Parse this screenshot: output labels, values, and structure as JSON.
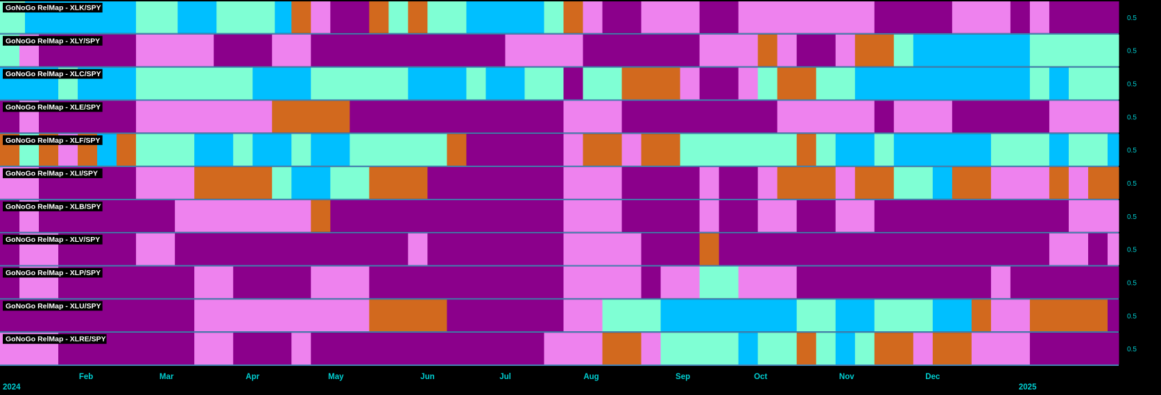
{
  "colors": {
    "strong_go": "#00BFFF",
    "go": "#7FFFD4",
    "nogo": "#EE82EE",
    "strong_nogo": "#8B008B",
    "nogo_neutral": "#D2691E",
    "separator": "#4682B4",
    "axis_text": "#00CED1"
  },
  "chart_data": {
    "type": "heatmap",
    "time_range": [
      "2024-01-01",
      "2025-02-07"
    ],
    "x_ticks": [
      {
        "date": "2024-01-02",
        "label": "2024",
        "row": 2
      },
      {
        "date": "2024-02-01",
        "label": "Feb",
        "row": 1
      },
      {
        "date": "2024-03-01",
        "label": "Mar",
        "row": 1
      },
      {
        "date": "2024-04-01",
        "label": "Apr",
        "row": 1
      },
      {
        "date": "2024-05-01",
        "label": "May",
        "row": 1
      },
      {
        "date": "2024-06-03",
        "label": "Jun",
        "row": 1
      },
      {
        "date": "2024-07-01",
        "label": "Jul",
        "row": 1
      },
      {
        "date": "2024-08-01",
        "label": "Aug",
        "row": 1
      },
      {
        "date": "2024-09-03",
        "label": "Sep",
        "row": 1
      },
      {
        "date": "2024-10-01",
        "label": "Oct",
        "row": 1
      },
      {
        "date": "2024-11-01",
        "label": "Nov",
        "row": 1
      },
      {
        "date": "2024-12-02",
        "label": "Dec",
        "row": 1
      },
      {
        "date": "2025-01-02",
        "label": "2025",
        "row": 2
      }
    ],
    "y_tick_label": "0.5",
    "categories": [
      "strong_go",
      "go",
      "nogo",
      "strong_nogo",
      "nogo_neutral"
    ],
    "series": [
      {
        "name": "GoNoGo RelMap - XLK/SPY",
        "segments": [
          [
            "2024-01-01",
            "go"
          ],
          [
            "2024-01-10",
            "strong_go"
          ],
          [
            "2024-02-19",
            "go"
          ],
          [
            "2024-03-05",
            "strong_go"
          ],
          [
            "2024-03-19",
            "go"
          ],
          [
            "2024-04-09",
            "strong_go"
          ],
          [
            "2024-04-15",
            "nogo_neutral"
          ],
          [
            "2024-04-22",
            "nogo"
          ],
          [
            "2024-04-29",
            "strong_nogo"
          ],
          [
            "2024-05-13",
            "nogo_neutral"
          ],
          [
            "2024-05-20",
            "go"
          ],
          [
            "2024-05-27",
            "nogo_neutral"
          ],
          [
            "2024-06-03",
            "go"
          ],
          [
            "2024-06-17",
            "strong_go"
          ],
          [
            "2024-07-15",
            "go"
          ],
          [
            "2024-07-22",
            "nogo_neutral"
          ],
          [
            "2024-07-29",
            "nogo"
          ],
          [
            "2024-08-05",
            "strong_nogo"
          ],
          [
            "2024-08-19",
            "nogo"
          ],
          [
            "2024-09-09",
            "strong_nogo"
          ],
          [
            "2024-09-23",
            "nogo"
          ],
          [
            "2024-11-11",
            "strong_nogo"
          ],
          [
            "2024-12-09",
            "nogo"
          ],
          [
            "2024-12-30",
            "strong_nogo"
          ],
          [
            "2025-01-06",
            "nogo"
          ],
          [
            "2025-01-13",
            "strong_nogo"
          ]
        ]
      },
      {
        "name": "GoNoGo RelMap - XLY/SPY",
        "segments": [
          [
            "2024-01-01",
            "go"
          ],
          [
            "2024-01-08",
            "nogo"
          ],
          [
            "2024-01-15",
            "strong_nogo"
          ],
          [
            "2024-02-19",
            "nogo"
          ],
          [
            "2024-03-18",
            "strong_nogo"
          ],
          [
            "2024-04-08",
            "nogo"
          ],
          [
            "2024-04-22",
            "strong_nogo"
          ],
          [
            "2024-07-01",
            "nogo"
          ],
          [
            "2024-07-29",
            "strong_nogo"
          ],
          [
            "2024-09-09",
            "nogo"
          ],
          [
            "2024-09-30",
            "nogo_neutral"
          ],
          [
            "2024-10-07",
            "nogo"
          ],
          [
            "2024-10-14",
            "strong_nogo"
          ],
          [
            "2024-10-28",
            "nogo"
          ],
          [
            "2024-11-04",
            "nogo_neutral"
          ],
          [
            "2024-11-18",
            "go"
          ],
          [
            "2024-11-25",
            "strong_go"
          ],
          [
            "2025-01-06",
            "go"
          ]
        ]
      },
      {
        "name": "GoNoGo RelMap - XLC/SPY",
        "segments": [
          [
            "2024-01-01",
            "strong_go"
          ],
          [
            "2024-01-22",
            "go"
          ],
          [
            "2024-01-29",
            "strong_go"
          ],
          [
            "2024-02-19",
            "go"
          ],
          [
            "2024-04-01",
            "strong_go"
          ],
          [
            "2024-04-22",
            "go"
          ],
          [
            "2024-05-27",
            "strong_go"
          ],
          [
            "2024-06-17",
            "go"
          ],
          [
            "2024-06-24",
            "strong_go"
          ],
          [
            "2024-07-08",
            "go"
          ],
          [
            "2024-07-22",
            "strong_nogo"
          ],
          [
            "2024-07-29",
            "go"
          ],
          [
            "2024-08-12",
            "nogo_neutral"
          ],
          [
            "2024-09-02",
            "nogo"
          ],
          [
            "2024-09-09",
            "strong_nogo"
          ],
          [
            "2024-09-23",
            "nogo"
          ],
          [
            "2024-09-30",
            "go"
          ],
          [
            "2024-10-07",
            "nogo_neutral"
          ],
          [
            "2024-10-21",
            "go"
          ],
          [
            "2024-11-04",
            "strong_go"
          ],
          [
            "2025-01-06",
            "go"
          ],
          [
            "2025-01-13",
            "strong_go"
          ],
          [
            "2025-01-20",
            "go"
          ]
        ]
      },
      {
        "name": "GoNoGo RelMap - XLE/SPY",
        "segments": [
          [
            "2024-01-01",
            "strong_nogo"
          ],
          [
            "2024-01-08",
            "nogo"
          ],
          [
            "2024-01-15",
            "strong_nogo"
          ],
          [
            "2024-02-19",
            "nogo"
          ],
          [
            "2024-04-08",
            "nogo_neutral"
          ],
          [
            "2024-05-06",
            "strong_nogo"
          ],
          [
            "2024-07-22",
            "nogo"
          ],
          [
            "2024-08-12",
            "strong_nogo"
          ],
          [
            "2024-10-07",
            "nogo"
          ],
          [
            "2024-11-11",
            "strong_nogo"
          ],
          [
            "2024-11-18",
            "nogo"
          ],
          [
            "2024-12-09",
            "strong_nogo"
          ],
          [
            "2025-01-13",
            "nogo"
          ]
        ]
      },
      {
        "name": "GoNoGo RelMap - XLF/SPY",
        "segments": [
          [
            "2024-01-01",
            "nogo_neutral"
          ],
          [
            "2024-01-08",
            "go"
          ],
          [
            "2024-01-15",
            "nogo_neutral"
          ],
          [
            "2024-01-22",
            "nogo"
          ],
          [
            "2024-01-29",
            "nogo_neutral"
          ],
          [
            "2024-02-05",
            "strong_go"
          ],
          [
            "2024-02-12",
            "nogo_neutral"
          ],
          [
            "2024-02-19",
            "go"
          ],
          [
            "2024-03-11",
            "strong_go"
          ],
          [
            "2024-03-25",
            "go"
          ],
          [
            "2024-04-01",
            "strong_go"
          ],
          [
            "2024-04-15",
            "go"
          ],
          [
            "2024-04-22",
            "strong_go"
          ],
          [
            "2024-05-06",
            "go"
          ],
          [
            "2024-06-10",
            "nogo_neutral"
          ],
          [
            "2024-06-17",
            "strong_nogo"
          ],
          [
            "2024-07-22",
            "nogo"
          ],
          [
            "2024-07-29",
            "nogo_neutral"
          ],
          [
            "2024-08-12",
            "nogo"
          ],
          [
            "2024-08-19",
            "nogo_neutral"
          ],
          [
            "2024-09-02",
            "go"
          ],
          [
            "2024-10-14",
            "nogo_neutral"
          ],
          [
            "2024-10-21",
            "go"
          ],
          [
            "2024-10-28",
            "strong_go"
          ],
          [
            "2024-11-11",
            "go"
          ],
          [
            "2024-11-18",
            "strong_go"
          ],
          [
            "2024-12-23",
            "go"
          ],
          [
            "2025-01-13",
            "strong_go"
          ],
          [
            "2025-01-20",
            "go"
          ],
          [
            "2025-02-03",
            "strong_go"
          ]
        ]
      },
      {
        "name": "GoNoGo RelMap - XLI/SPY",
        "segments": [
          [
            "2024-01-01",
            "nogo"
          ],
          [
            "2024-01-15",
            "strong_nogo"
          ],
          [
            "2024-02-19",
            "nogo"
          ],
          [
            "2024-03-11",
            "nogo_neutral"
          ],
          [
            "2024-04-08",
            "go"
          ],
          [
            "2024-04-15",
            "strong_go"
          ],
          [
            "2024-04-29",
            "go"
          ],
          [
            "2024-05-13",
            "nogo_neutral"
          ],
          [
            "2024-06-03",
            "strong_nogo"
          ],
          [
            "2024-07-22",
            "nogo"
          ],
          [
            "2024-08-12",
            "strong_nogo"
          ],
          [
            "2024-09-09",
            "nogo"
          ],
          [
            "2024-09-16",
            "strong_nogo"
          ],
          [
            "2024-09-30",
            "nogo"
          ],
          [
            "2024-10-07",
            "nogo_neutral"
          ],
          [
            "2024-10-28",
            "nogo"
          ],
          [
            "2024-11-04",
            "nogo_neutral"
          ],
          [
            "2024-11-18",
            "go"
          ],
          [
            "2024-12-02",
            "strong_go"
          ],
          [
            "2024-12-09",
            "nogo_neutral"
          ],
          [
            "2024-12-23",
            "nogo"
          ],
          [
            "2025-01-13",
            "nogo_neutral"
          ],
          [
            "2025-01-20",
            "nogo"
          ],
          [
            "2025-01-27",
            "nogo_neutral"
          ]
        ]
      },
      {
        "name": "GoNoGo RelMap - XLB/SPY",
        "segments": [
          [
            "2024-01-01",
            "strong_nogo"
          ],
          [
            "2024-01-08",
            "nogo"
          ],
          [
            "2024-01-15",
            "strong_nogo"
          ],
          [
            "2024-03-04",
            "nogo"
          ],
          [
            "2024-04-22",
            "nogo_neutral"
          ],
          [
            "2024-04-29",
            "strong_nogo"
          ],
          [
            "2024-07-22",
            "nogo"
          ],
          [
            "2024-08-12",
            "strong_nogo"
          ],
          [
            "2024-09-09",
            "nogo"
          ],
          [
            "2024-09-16",
            "strong_nogo"
          ],
          [
            "2024-09-30",
            "nogo"
          ],
          [
            "2024-10-14",
            "strong_nogo"
          ],
          [
            "2024-10-28",
            "nogo"
          ],
          [
            "2024-11-11",
            "strong_nogo"
          ],
          [
            "2025-01-20",
            "nogo"
          ]
        ]
      },
      {
        "name": "GoNoGo RelMap - XLV/SPY",
        "segments": [
          [
            "2024-01-01",
            "strong_nogo"
          ],
          [
            "2024-01-08",
            "nogo"
          ],
          [
            "2024-01-22",
            "strong_nogo"
          ],
          [
            "2024-02-19",
            "nogo"
          ],
          [
            "2024-03-04",
            "strong_nogo"
          ],
          [
            "2024-05-27",
            "nogo"
          ],
          [
            "2024-06-03",
            "strong_nogo"
          ],
          [
            "2024-07-22",
            "nogo"
          ],
          [
            "2024-08-19",
            "strong_nogo"
          ],
          [
            "2024-09-09",
            "nogo_neutral"
          ],
          [
            "2024-09-16",
            "strong_nogo"
          ],
          [
            "2025-01-13",
            "nogo"
          ],
          [
            "2025-01-27",
            "strong_nogo"
          ],
          [
            "2025-02-03",
            "nogo"
          ]
        ]
      },
      {
        "name": "GoNoGo RelMap - XLP/SPY",
        "segments": [
          [
            "2024-01-01",
            "strong_nogo"
          ],
          [
            "2024-01-08",
            "nogo"
          ],
          [
            "2024-01-22",
            "strong_nogo"
          ],
          [
            "2024-03-11",
            "nogo"
          ],
          [
            "2024-03-25",
            "strong_nogo"
          ],
          [
            "2024-04-22",
            "nogo"
          ],
          [
            "2024-05-13",
            "strong_nogo"
          ],
          [
            "2024-07-22",
            "nogo"
          ],
          [
            "2024-08-19",
            "strong_nogo"
          ],
          [
            "2024-08-26",
            "nogo"
          ],
          [
            "2024-09-09",
            "go"
          ],
          [
            "2024-09-23",
            "nogo"
          ],
          [
            "2024-10-14",
            "strong_nogo"
          ],
          [
            "2024-12-23",
            "nogo"
          ],
          [
            "2024-12-30",
            "strong_nogo"
          ]
        ]
      },
      {
        "name": "GoNoGo RelMap - XLU/SPY",
        "segments": [
          [
            "2024-01-01",
            "strong_nogo"
          ],
          [
            "2024-03-11",
            "nogo"
          ],
          [
            "2024-05-13",
            "nogo_neutral"
          ],
          [
            "2024-06-10",
            "strong_nogo"
          ],
          [
            "2024-07-22",
            "nogo"
          ],
          [
            "2024-08-05",
            "go"
          ],
          [
            "2024-08-26",
            "strong_go"
          ],
          [
            "2024-10-14",
            "go"
          ],
          [
            "2024-10-28",
            "strong_go"
          ],
          [
            "2024-11-11",
            "go"
          ],
          [
            "2024-12-02",
            "strong_go"
          ],
          [
            "2024-12-16",
            "nogo_neutral"
          ],
          [
            "2024-12-23",
            "nogo"
          ],
          [
            "2025-01-06",
            "nogo_neutral"
          ],
          [
            "2025-02-03",
            "strong_nogo"
          ]
        ]
      },
      {
        "name": "GoNoGo RelMap - XLRE/SPY",
        "segments": [
          [
            "2024-01-01",
            "nogo"
          ],
          [
            "2024-01-22",
            "strong_nogo"
          ],
          [
            "2024-03-11",
            "nogo"
          ],
          [
            "2024-03-25",
            "strong_nogo"
          ],
          [
            "2024-04-15",
            "nogo"
          ],
          [
            "2024-04-22",
            "strong_nogo"
          ],
          [
            "2024-07-15",
            "nogo"
          ],
          [
            "2024-08-05",
            "nogo_neutral"
          ],
          [
            "2024-08-19",
            "nogo"
          ],
          [
            "2024-08-26",
            "go"
          ],
          [
            "2024-09-23",
            "strong_go"
          ],
          [
            "2024-09-30",
            "go"
          ],
          [
            "2024-10-14",
            "nogo_neutral"
          ],
          [
            "2024-10-21",
            "go"
          ],
          [
            "2024-10-28",
            "strong_go"
          ],
          [
            "2024-11-04",
            "go"
          ],
          [
            "2024-11-11",
            "nogo_neutral"
          ],
          [
            "2024-11-25",
            "nogo"
          ],
          [
            "2024-12-02",
            "nogo_neutral"
          ],
          [
            "2024-12-16",
            "nogo"
          ],
          [
            "2025-01-06",
            "strong_nogo"
          ]
        ]
      }
    ]
  }
}
